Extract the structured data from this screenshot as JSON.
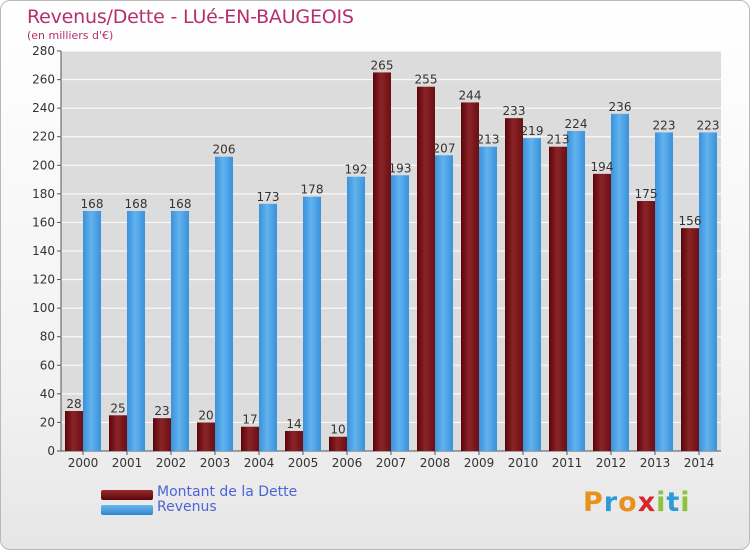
{
  "header": {
    "title": "Revenus/Dette - LUé-EN-BAUGEOIS",
    "subtitle": "(en milliers d'€)"
  },
  "colors": {
    "debt": "#7a1418",
    "revenue": "#3e9ce6",
    "title": "#b5306a",
    "grid": "#ffffff"
  },
  "chart_data": {
    "type": "bar",
    "title": "Revenus/Dette - LUé-EN-BAUGEOIS",
    "subtitle": "(en milliers d'€)",
    "categories": [
      "2000",
      "2001",
      "2002",
      "2003",
      "2004",
      "2005",
      "2006",
      "2007",
      "2008",
      "2009",
      "2010",
      "2011",
      "2012",
      "2013",
      "2014"
    ],
    "series": [
      {
        "name": "Montant de la Dette",
        "values": [
          28,
          25,
          23,
          20,
          17,
          14,
          10,
          265,
          255,
          244,
          233,
          213,
          194,
          175,
          156
        ]
      },
      {
        "name": "Revenus",
        "values": [
          168,
          168,
          168,
          206,
          173,
          178,
          192,
          193,
          207,
          213,
          219,
          224,
          236,
          223,
          223
        ]
      }
    ],
    "ylim": [
      0,
      280
    ],
    "yticks": [
      0,
      20,
      40,
      60,
      80,
      100,
      120,
      140,
      160,
      180,
      200,
      220,
      240,
      260,
      280
    ],
    "grid": true,
    "legend_position": "bottom-left"
  },
  "legend": {
    "items": [
      {
        "label": "Montant de la Dette"
      },
      {
        "label": "Revenus"
      }
    ]
  },
  "logo": {
    "letters": [
      "P",
      "r",
      "o",
      "x",
      "i",
      "t",
      "i"
    ],
    "colors": [
      "#e8911c",
      "#2f9ad8",
      "#e8911c",
      "#d6262b",
      "#8cc23c",
      "#2f9ad8",
      "#8cc23c"
    ]
  }
}
